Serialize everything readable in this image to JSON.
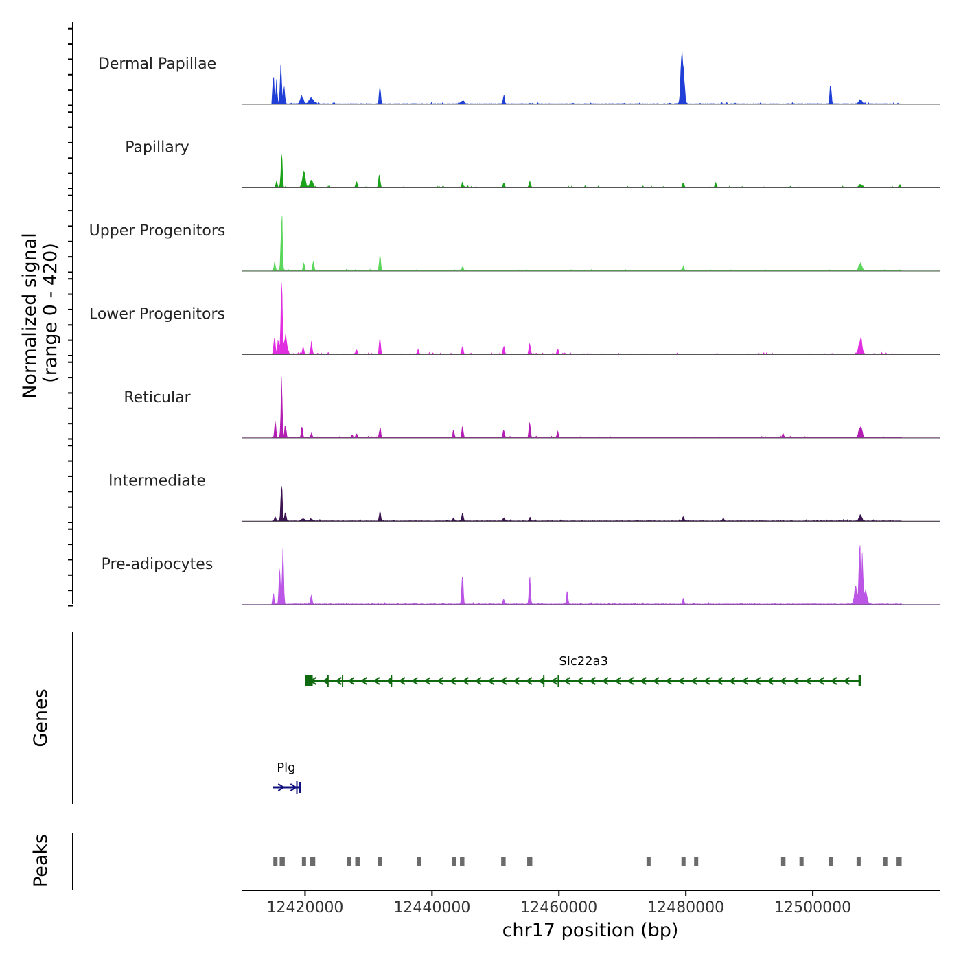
{
  "chart_data": {
    "type": "area",
    "chromosome": "chr17",
    "xlim": [
      12410000,
      12520000
    ],
    "xlabel": "chr17 position (bp)",
    "x_ticks": [
      12420000,
      12440000,
      12460000,
      12480000,
      12500000
    ],
    "x_tick_labels": [
      "12420000",
      "12440000",
      "12460000",
      "12480000",
      "12500000"
    ],
    "coverage": {
      "ylabel_line1": "Normalized signal",
      "ylabel_line2": "(range 0 - 420)",
      "ylim": [
        0,
        420
      ],
      "tracks": [
        {
          "name": "Dermal Papillae",
          "color": "#1f3fd6",
          "baseline": 1.5,
          "peaks": [
            [
              12415000,
              160,
              1
            ],
            [
              12415500,
              120,
              1
            ],
            [
              12416200,
              210,
              1
            ],
            [
              12416700,
              90,
              1
            ],
            [
              12419500,
              40,
              2
            ],
            [
              12421000,
              30,
              3
            ],
            [
              12431800,
              110,
              1
            ],
            [
              12444800,
              20,
              2
            ],
            [
              12451300,
              45,
              1
            ],
            [
              12479500,
              220,
              2
            ],
            [
              12479300,
              150,
              1
            ],
            [
              12502800,
              110,
              1
            ],
            [
              12507500,
              25,
              2
            ]
          ]
        },
        {
          "name": "Papillary",
          "color": "#1aa31a",
          "baseline": 1.5,
          "peaks": [
            [
              12415500,
              30,
              1
            ],
            [
              12416300,
              180,
              1
            ],
            [
              12419800,
              80,
              2
            ],
            [
              12421000,
              40,
              2
            ],
            [
              12428100,
              30,
              1
            ],
            [
              12431700,
              75,
              1
            ],
            [
              12444800,
              30,
              1
            ],
            [
              12451300,
              25,
              1
            ],
            [
              12455400,
              30,
              1
            ],
            [
              12479600,
              30,
              1
            ],
            [
              12484700,
              25,
              1
            ],
            [
              12507500,
              18,
              2
            ],
            [
              12513700,
              15,
              1
            ]
          ]
        },
        {
          "name": "Upper Progenitors",
          "color": "#5ad65a",
          "baseline": 1.5,
          "peaks": [
            [
              12415200,
              40,
              1
            ],
            [
              12416300,
              330,
              1
            ],
            [
              12419800,
              50,
              1
            ],
            [
              12421300,
              55,
              1
            ],
            [
              12431800,
              95,
              1
            ],
            [
              12444800,
              20,
              1
            ],
            [
              12479600,
              25,
              1
            ],
            [
              12507500,
              45,
              2
            ]
          ]
        },
        {
          "name": "Lower Progenitors",
          "color": "#e12ee1",
          "baseline": 2,
          "peaks": [
            [
              12415200,
              110,
              1
            ],
            [
              12415800,
              90,
              1
            ],
            [
              12416300,
              420,
              1
            ],
            [
              12416900,
              100,
              2
            ],
            [
              12419700,
              40,
              1
            ],
            [
              12421000,
              65,
              1
            ],
            [
              12428100,
              30,
              1
            ],
            [
              12431800,
              90,
              1
            ],
            [
              12437800,
              25,
              1
            ],
            [
              12444800,
              45,
              1
            ],
            [
              12451300,
              45,
              1
            ],
            [
              12455400,
              65,
              1
            ],
            [
              12459800,
              25,
              1
            ],
            [
              12507500,
              95,
              2
            ]
          ]
        },
        {
          "name": "Reticular",
          "color": "#b31db3",
          "baseline": 1.5,
          "peaks": [
            [
              12415300,
              90,
              1
            ],
            [
              12416300,
              310,
              1
            ],
            [
              12416900,
              70,
              1
            ],
            [
              12419500,
              60,
              1
            ],
            [
              12421000,
              25,
              1
            ],
            [
              12427400,
              15,
              1
            ],
            [
              12428100,
              20,
              1
            ],
            [
              12431800,
              60,
              1
            ],
            [
              12443400,
              45,
              1
            ],
            [
              12444800,
              60,
              1
            ],
            [
              12451300,
              50,
              1
            ],
            [
              12455400,
              95,
              1
            ],
            [
              12459800,
              30,
              1
            ],
            [
              12495300,
              25,
              1
            ],
            [
              12507500,
              70,
              2
            ]
          ]
        },
        {
          "name": "Intermediate",
          "color": "#3b1450",
          "baseline": 1.5,
          "peaks": [
            [
              12415300,
              25,
              1
            ],
            [
              12416300,
              230,
              1
            ],
            [
              12416900,
              60,
              1
            ],
            [
              12419700,
              12,
              2
            ],
            [
              12421000,
              10,
              2
            ],
            [
              12431800,
              50,
              1
            ],
            [
              12443400,
              20,
              1
            ],
            [
              12444800,
              50,
              1
            ],
            [
              12451300,
              20,
              1
            ],
            [
              12455400,
              20,
              1
            ],
            [
              12479600,
              25,
              1
            ],
            [
              12485900,
              15,
              1
            ],
            [
              12507500,
              30,
              2
            ]
          ]
        },
        {
          "name": "Pre-adipocytes",
          "color": "#bb55e6",
          "baseline": 2.5,
          "peaks": [
            [
              12415000,
              70,
              1
            ],
            [
              12416000,
              210,
              1
            ],
            [
              12416500,
              320,
              1
            ],
            [
              12421000,
              50,
              1
            ],
            [
              12444800,
              180,
              1
            ],
            [
              12451300,
              30,
              1
            ],
            [
              12455400,
              140,
              1
            ],
            [
              12461300,
              70,
              1
            ],
            [
              12479600,
              30,
              1
            ],
            [
              12506800,
              100,
              2
            ],
            [
              12507400,
              350,
              1
            ],
            [
              12507800,
              250,
              1
            ],
            [
              12508300,
              80,
              2
            ]
          ]
        }
      ]
    },
    "genes": {
      "ylabel": "Genes",
      "items": [
        {
          "name": "Slc22a3",
          "strand": "-",
          "color": "#0f6a0f",
          "start": 12420000,
          "end": 12507600,
          "exons": [
            [
              12420000,
              12421200
            ],
            [
              12423500,
              12423700
            ],
            [
              12425800,
              12426000
            ],
            [
              12433500,
              12433700
            ],
            [
              12457500,
              12457700
            ],
            [
              12459800,
              12460000
            ],
            [
              12507200,
              12507600
            ]
          ]
        },
        {
          "name": "Plg",
          "strand": "+",
          "color": "#10107e",
          "start": 12414900,
          "end": 12419400,
          "exons": [
            [
              12418600,
              12418800
            ],
            [
              12419000,
              12419400
            ]
          ]
        }
      ]
    },
    "peaks_track": {
      "ylabel": "Peaks",
      "color": "#6b6b6b",
      "regions": [
        [
          12415000,
          12415600
        ],
        [
          12416000,
          12416800
        ],
        [
          12419500,
          12420100
        ],
        [
          12420800,
          12421600
        ],
        [
          12426600,
          12427300
        ],
        [
          12427900,
          12428600
        ],
        [
          12431500,
          12432100
        ],
        [
          12437600,
          12438200
        ],
        [
          12443100,
          12443800
        ],
        [
          12444400,
          12445100
        ],
        [
          12450900,
          12451600
        ],
        [
          12455000,
          12455800
        ],
        [
          12473800,
          12474400
        ],
        [
          12479300,
          12479900
        ],
        [
          12481300,
          12481900
        ],
        [
          12495000,
          12495700
        ],
        [
          12497900,
          12498500
        ],
        [
          12502500,
          12503100
        ],
        [
          12506900,
          12507500
        ],
        [
          12511100,
          12511700
        ],
        [
          12513200,
          12514000
        ]
      ]
    }
  }
}
